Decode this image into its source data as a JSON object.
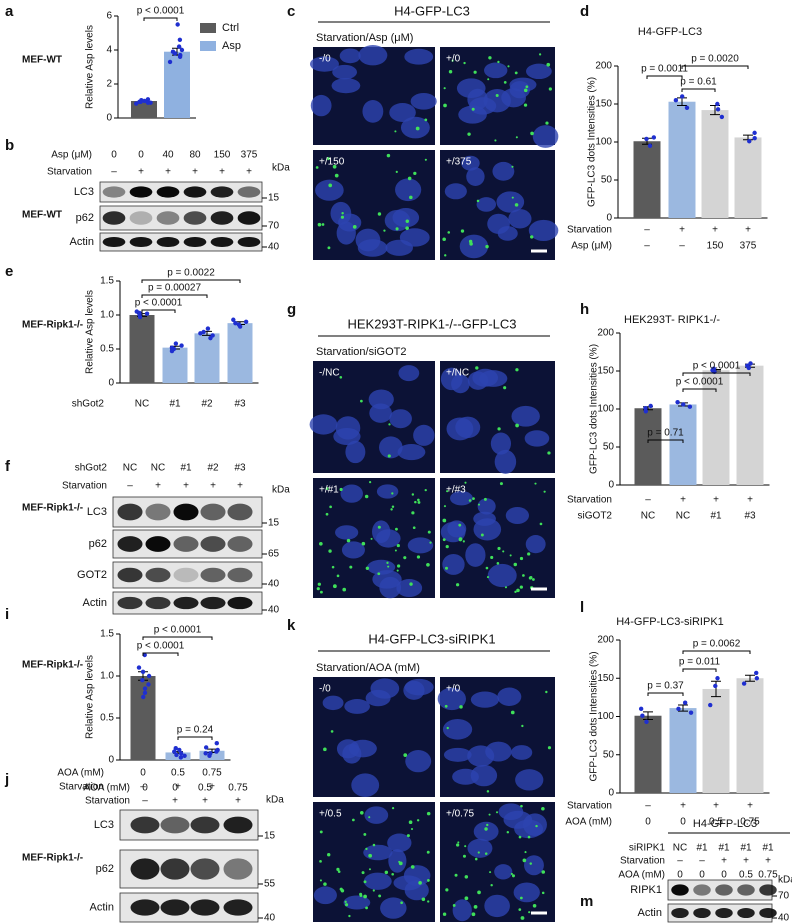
{
  "panel_labels": [
    "a",
    "b",
    "c",
    "d",
    "e",
    "f",
    "g",
    "h",
    "i",
    "j",
    "k",
    "l",
    "m"
  ],
  "cell_lines": [
    "MEF-WT",
    "MEF-WT",
    "MEF-Ripk1-/-",
    "MEF-Ripk1-/-",
    "MEF-Ripk1-/-",
    "MEF-Ripk1-/-"
  ],
  "chart_data": [
    {
      "type": "bar",
      "y_label": "Relative Asp levels",
      "categories": [
        null
      ],
      "series": [
        {
          "name": "Ctrl",
          "color": "#5b5b5b",
          "values": [
            1.0
          ],
          "errors": [
            0.03
          ],
          "points": [
            [
              0.85,
              0.9,
              0.95,
              0.95,
              1.0,
              1.0,
              1.05,
              1.1,
              0.9
            ]
          ]
        },
        {
          "name": "Asp",
          "color": "#8fb1e0",
          "values": [
            3.9
          ],
          "errors": [
            0.2
          ],
          "points": [
            [
              5.5,
              4.6,
              4.2,
              4.0,
              3.9,
              3.8,
              3.7,
              3.6,
              3.3
            ]
          ]
        }
      ],
      "ylim": [
        0,
        6
      ],
      "yticks": [
        0,
        2,
        4,
        6
      ],
      "comparisons": [
        "p < 0.0001"
      ]
    },
    {
      "type": "bar",
      "title": "H4-GFP-LC3",
      "y_label": "GFP-LC3 dots Intensities (%)",
      "values": [
        101,
        153,
        142,
        106
      ],
      "errors": [
        4,
        5,
        6,
        3
      ],
      "points": [
        [
          95,
          104,
          106
        ],
        [
          145,
          155,
          160
        ],
        [
          133,
          143,
          150
        ],
        [
          101,
          105,
          112
        ]
      ],
      "colors": [
        "#5b5b5b",
        "#9bb8e0",
        "#d4d4d4",
        "#d4d4d4"
      ],
      "ylim": [
        0,
        200
      ],
      "yticks": [
        0,
        50,
        100,
        150,
        200
      ],
      "rows": [
        {
          "label": "Starvation",
          "cells": [
            "–",
            "+",
            "+",
            "+"
          ]
        },
        {
          "label": "Asp (μM)",
          "cells": [
            "–",
            "–",
            "150",
            "375"
          ]
        }
      ],
      "comparisons": [
        "p = 0.0011",
        "p = 0.61",
        "p = 0.0020"
      ]
    },
    {
      "type": "bar",
      "y_label": "Relative Asp levels",
      "values": [
        1.0,
        0.52,
        0.73,
        0.88
      ],
      "errors": [
        0.02,
        0.02,
        0.03,
        0.02
      ],
      "points": [
        [
          0.97,
          1.0,
          1.02,
          1.03,
          1.05
        ],
        [
          0.47,
          0.5,
          0.52,
          0.55,
          0.58
        ],
        [
          0.66,
          0.7,
          0.73,
          0.75,
          0.8
        ],
        [
          0.83,
          0.86,
          0.88,
          0.9,
          0.93
        ]
      ],
      "colors": [
        "#5b5b5b",
        "#9bb8e0",
        "#9bb8e0",
        "#9bb8e0"
      ],
      "ylim": [
        0,
        1.5
      ],
      "yticks": [
        0,
        0.5,
        {
          "value": 1,
          "label": "1.0"
        },
        1.5
      ],
      "rows": [
        {
          "label": "shGot2",
          "cells": [
            "NC",
            "#1",
            "#2",
            "#3"
          ]
        }
      ],
      "comparisons": [
        "p < 0.0001",
        "p = 0.00027",
        "p = 0.0022"
      ]
    },
    {
      "type": "bar",
      "title": "HEK293T- RIPK1-/-",
      "y_label": "GFP-LC3 dots Intensities (%)",
      "values": [
        101,
        106,
        151,
        157
      ],
      "errors": [
        2,
        2,
        1,
        2
      ],
      "points": [
        [
          97,
          101,
          104
        ],
        [
          103,
          106,
          109
        ],
        [
          149,
          151,
          153
        ],
        [
          154,
          157,
          160
        ]
      ],
      "colors": [
        "#5b5b5b",
        "#9bb8e0",
        "#d4d4d4",
        "#d4d4d4"
      ],
      "ylim": [
        0,
        200
      ],
      "yticks": [
        0,
        50,
        100,
        150,
        200
      ],
      "rows": [
        {
          "label": "Starvation",
          "cells": [
            "–",
            "+",
            "+",
            "+"
          ]
        },
        {
          "label": "siGOT2",
          "cells": [
            "NC",
            "NC",
            "#1",
            "#3"
          ]
        }
      ],
      "comparisons": [
        "p = 0.71",
        "p < 0.0001",
        "p < 0.0001"
      ]
    },
    {
      "type": "bar",
      "y_label": "Relative Asp levels",
      "values": [
        1.0,
        0.09,
        0.11
      ],
      "errors": [
        0.05,
        0.01,
        0.02
      ],
      "points": [
        [
          1.25,
          1.1,
          1.0,
          0.95,
          0.9,
          0.85,
          0.8,
          0.75,
          1.05
        ],
        [
          0.03,
          0.05,
          0.06,
          0.08,
          0.1,
          0.12,
          0.14
        ],
        [
          0.05,
          0.08,
          0.1,
          0.12,
          0.15,
          0.2,
          0.08
        ]
      ],
      "colors": [
        "#5b5b5b",
        "#9bb8e0",
        "#9bb8e0"
      ],
      "ylim": [
        0,
        1.5
      ],
      "yticks": [
        0,
        0.5,
        {
          "value": 1,
          "label": "1.0"
        },
        1.5
      ],
      "rows": [
        {
          "label": "AOA (mM)",
          "cells": [
            "0",
            "0.5",
            "0.75"
          ]
        },
        {
          "label": "Starvation",
          "cells": [
            "–",
            "+",
            "+"
          ]
        }
      ],
      "comparisons": [
        "p < 0.0001",
        "p < 0.0001",
        "p = 0.24"
      ]
    },
    {
      "type": "bar",
      "title": "H4-GFP-LC3-siRIPK1",
      "y_label": "GFP-LC3 dots Intensities (%)",
      "values": [
        101,
        111,
        136,
        150
      ],
      "errors": [
        5,
        4,
        10,
        4
      ],
      "points": [
        [
          93,
          101,
          110
        ],
        [
          105,
          110,
          118
        ],
        [
          115,
          140,
          150
        ],
        [
          143,
          150,
          157
        ]
      ],
      "colors": [
        "#5b5b5b",
        "#9bb8e0",
        "#d4d4d4",
        "#d4d4d4"
      ],
      "ylim": [
        0,
        200
      ],
      "yticks": [
        0,
        50,
        100,
        150,
        200
      ],
      "rows": [
        {
          "label": "Starvation",
          "cells": [
            "–",
            "+",
            "+",
            "+"
          ]
        },
        {
          "label": "AOA (mM)",
          "cells": [
            "0",
            "0",
            "0.5",
            "0.75"
          ]
        }
      ],
      "comparisons": [
        "p = 0.37",
        "p = 0.011",
        "p = 0.0062"
      ]
    }
  ],
  "blots": [
    {
      "conditions": [
        {
          "label": "Asp (μM)",
          "cells": [
            "0",
            "0",
            "40",
            "80",
            "150",
            "375"
          ]
        },
        {
          "label": "Starvation",
          "cells": [
            "–",
            "+",
            "+",
            "+",
            "+",
            "+"
          ]
        }
      ],
      "bands": [
        {
          "label": "LC3",
          "marker": "15"
        },
        {
          "label": "p62",
          "marker": "70"
        },
        {
          "label": "Actin",
          "marker": "40"
        }
      ],
      "unit": "kDa"
    },
    {
      "conditions": [
        {
          "label": "shGot2",
          "cells": [
            "NC",
            "NC",
            "#1",
            "#2",
            "#3"
          ]
        },
        {
          "label": "Starvation",
          "cells": [
            "–",
            "+",
            "+",
            "+",
            "+"
          ]
        }
      ],
      "bands": [
        {
          "label": "LC3",
          "marker": "15"
        },
        {
          "label": "p62",
          "marker": "65"
        },
        {
          "label": "GOT2",
          "marker": "40"
        },
        {
          "label": "Actin",
          "marker": "40"
        }
      ],
      "unit": "kDa"
    },
    {
      "conditions": [
        {
          "label": "AOA (mM)",
          "cells": [
            "0",
            "0",
            "0.5",
            "0.75"
          ]
        },
        {
          "label": "Starvation",
          "cells": [
            "–",
            "+",
            "+",
            "+"
          ]
        }
      ],
      "bands": [
        {
          "label": "LC3",
          "marker": "15"
        },
        {
          "label": "p62",
          "marker": "55"
        },
        {
          "label": "Actin",
          "marker": "40"
        }
      ],
      "unit": "kDa"
    },
    {
      "title": "H4-GFP-LC3",
      "conditions": [
        {
          "label": "siRIPK1",
          "cells": [
            "NC",
            "#1",
            "#1",
            "#1",
            "#1"
          ]
        },
        {
          "label": "Starvation",
          "cells": [
            "–",
            "–",
            "+",
            "+",
            "+"
          ]
        },
        {
          "label": "AOA (mM)",
          "cells": [
            "0",
            "0",
            "0",
            "0.5",
            "0.75"
          ]
        }
      ],
      "bands": [
        {
          "label": "RIPK1",
          "marker": "70"
        },
        {
          "label": "Actin",
          "marker": "40"
        }
      ],
      "unit": "kDa"
    }
  ],
  "micrographs": [
    {
      "title": "H4-GFP-LC3",
      "subtitle": "Starvation/Asp (μM)",
      "tiles": [
        "-/0",
        "+/0",
        "+/150",
        "+/375"
      ]
    },
    {
      "title": "HEK293T-RIPK1-/--GFP-LC3",
      "subtitle": "Starvation/siGOT2",
      "tiles": [
        "-/NC",
        "+/NC",
        "+/#1",
        "+/#3"
      ]
    },
    {
      "title": "H4-GFP-LC3-siRIPK1",
      "subtitle": "Starvation/AOA (mM)",
      "tiles": [
        "-/0",
        "+/0",
        "+/0.5",
        "+/0.75"
      ]
    }
  ]
}
